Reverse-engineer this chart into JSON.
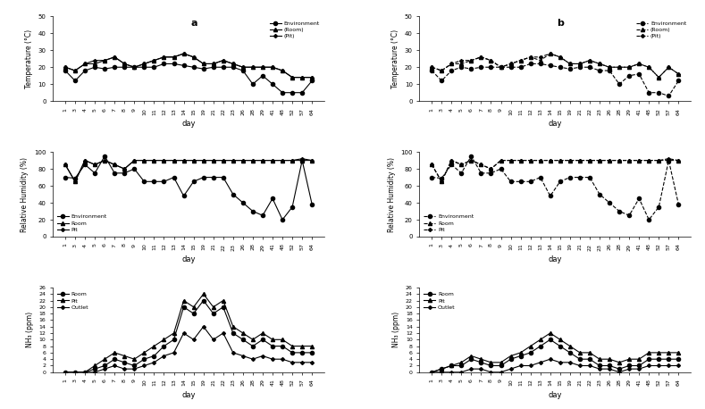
{
  "x_labels": [
    "1",
    "3",
    "4",
    "5",
    "6",
    "7",
    "8",
    "9",
    "10",
    "11",
    "12",
    "13",
    "14",
    "15",
    "19",
    "21",
    "22",
    "23",
    "26",
    "28",
    "29",
    "41",
    "48",
    "52",
    "57",
    "64"
  ],
  "n": 26,
  "temp_a_env": [
    18,
    12,
    18,
    20,
    19,
    20,
    20,
    20,
    20,
    20,
    22,
    22,
    21,
    20,
    19,
    20,
    20,
    20,
    18,
    10,
    15,
    10,
    5,
    5,
    5,
    12
  ],
  "temp_a_room": [
    20,
    18,
    22,
    22,
    24,
    26,
    22,
    20,
    22,
    24,
    26,
    26,
    28,
    26,
    22,
    22,
    24,
    22,
    20,
    20,
    20,
    20,
    18,
    14,
    14,
    14
  ],
  "temp_a_pit": [
    20,
    18,
    22,
    24,
    24,
    26,
    22,
    20,
    22,
    24,
    26,
    26,
    28,
    26,
    22,
    22,
    24,
    22,
    20,
    20,
    20,
    20,
    18,
    14,
    14,
    14
  ],
  "temp_b_env": [
    18,
    12,
    18,
    20,
    19,
    20,
    20,
    20,
    20,
    20,
    22,
    22,
    21,
    20,
    19,
    20,
    20,
    18,
    18,
    10,
    15,
    16,
    5,
    5,
    3,
    12
  ],
  "temp_b_room": [
    20,
    18,
    22,
    22,
    24,
    26,
    24,
    20,
    22,
    24,
    26,
    24,
    28,
    26,
    22,
    22,
    24,
    22,
    20,
    20,
    20,
    22,
    20,
    14,
    20,
    16
  ],
  "temp_b_pit": [
    20,
    18,
    22,
    24,
    24,
    26,
    24,
    20,
    22,
    24,
    26,
    26,
    28,
    26,
    22,
    22,
    24,
    22,
    20,
    20,
    20,
    22,
    20,
    14,
    20,
    16
  ],
  "rh_a_env": [
    70,
    69,
    85,
    75,
    95,
    75,
    75,
    80,
    65,
    65,
    65,
    70,
    48,
    65,
    70,
    70,
    70,
    50,
    40,
    30,
    25,
    45,
    20,
    35,
    90,
    38
  ],
  "rh_a_room": [
    85,
    65,
    90,
    85,
    90,
    85,
    80,
    90,
    90,
    90,
    90,
    90,
    90,
    90,
    90,
    90,
    90,
    90,
    90,
    90,
    90,
    90,
    90,
    90,
    90,
    90
  ],
  "rh_a_pit": [
    85,
    65,
    90,
    85,
    90,
    85,
    80,
    90,
    90,
    90,
    90,
    90,
    90,
    90,
    90,
    90,
    90,
    90,
    90,
    90,
    90,
    90,
    90,
    90,
    92,
    90
  ],
  "rh_b_env": [
    70,
    69,
    85,
    75,
    95,
    75,
    75,
    80,
    65,
    65,
    65,
    70,
    48,
    65,
    70,
    70,
    70,
    50,
    40,
    30,
    25,
    45,
    20,
    35,
    90,
    38
  ],
  "rh_b_room": [
    85,
    65,
    90,
    85,
    90,
    85,
    80,
    90,
    90,
    90,
    90,
    90,
    90,
    90,
    90,
    90,
    90,
    90,
    90,
    90,
    90,
    90,
    90,
    90,
    90,
    90
  ],
  "rh_b_pit": [
    85,
    65,
    90,
    85,
    90,
    85,
    80,
    90,
    90,
    90,
    90,
    90,
    90,
    90,
    90,
    90,
    90,
    90,
    90,
    90,
    90,
    90,
    90,
    90,
    92,
    90
  ],
  "nh3_a_room": [
    0,
    0,
    0,
    1,
    2,
    4,
    3,
    2,
    4,
    5,
    8,
    10,
    20,
    18,
    22,
    18,
    20,
    12,
    10,
    8,
    10,
    8,
    8,
    6,
    6,
    6
  ],
  "nh3_a_pit": [
    0,
    0,
    0,
    2,
    4,
    6,
    5,
    4,
    6,
    8,
    10,
    12,
    22,
    20,
    24,
    20,
    22,
    14,
    12,
    10,
    12,
    10,
    10,
    8,
    8,
    8
  ],
  "nh3_a_outlet": [
    0,
    0,
    0,
    0,
    1,
    2,
    1,
    1,
    2,
    3,
    5,
    6,
    12,
    10,
    14,
    10,
    12,
    6,
    5,
    4,
    5,
    4,
    4,
    3,
    3,
    3
  ],
  "nh3_b_room": [
    0,
    1,
    2,
    2,
    4,
    3,
    2,
    2,
    4,
    5,
    6,
    8,
    10,
    8,
    6,
    4,
    4,
    2,
    2,
    1,
    2,
    2,
    4,
    4,
    4,
    4
  ],
  "nh3_b_pit": [
    0,
    1,
    2,
    3,
    5,
    4,
    3,
    3,
    5,
    6,
    8,
    10,
    12,
    10,
    8,
    6,
    6,
    4,
    4,
    3,
    4,
    4,
    6,
    6,
    6,
    6
  ],
  "nh3_b_outlet": [
    0,
    0,
    0,
    0,
    1,
    1,
    0,
    0,
    1,
    2,
    2,
    3,
    4,
    3,
    3,
    2,
    2,
    1,
    1,
    0,
    1,
    1,
    2,
    2,
    2,
    2
  ],
  "panel_a_label": "a",
  "panel_b_label": "b",
  "temp_ylim": [
    0,
    50
  ],
  "temp_yticks": [
    0,
    10,
    20,
    30,
    40,
    50
  ],
  "rh_ylim": [
    0,
    100
  ],
  "rh_yticks": [
    0,
    20,
    40,
    60,
    80,
    100
  ],
  "nh3_ylim": [
    0,
    26
  ],
  "nh3_yticks": [
    0,
    2,
    4,
    6,
    8,
    10,
    12,
    14,
    16,
    18,
    20,
    22,
    24,
    26
  ],
  "line_color": "black",
  "markersize": 3,
  "linewidth": 0.8
}
